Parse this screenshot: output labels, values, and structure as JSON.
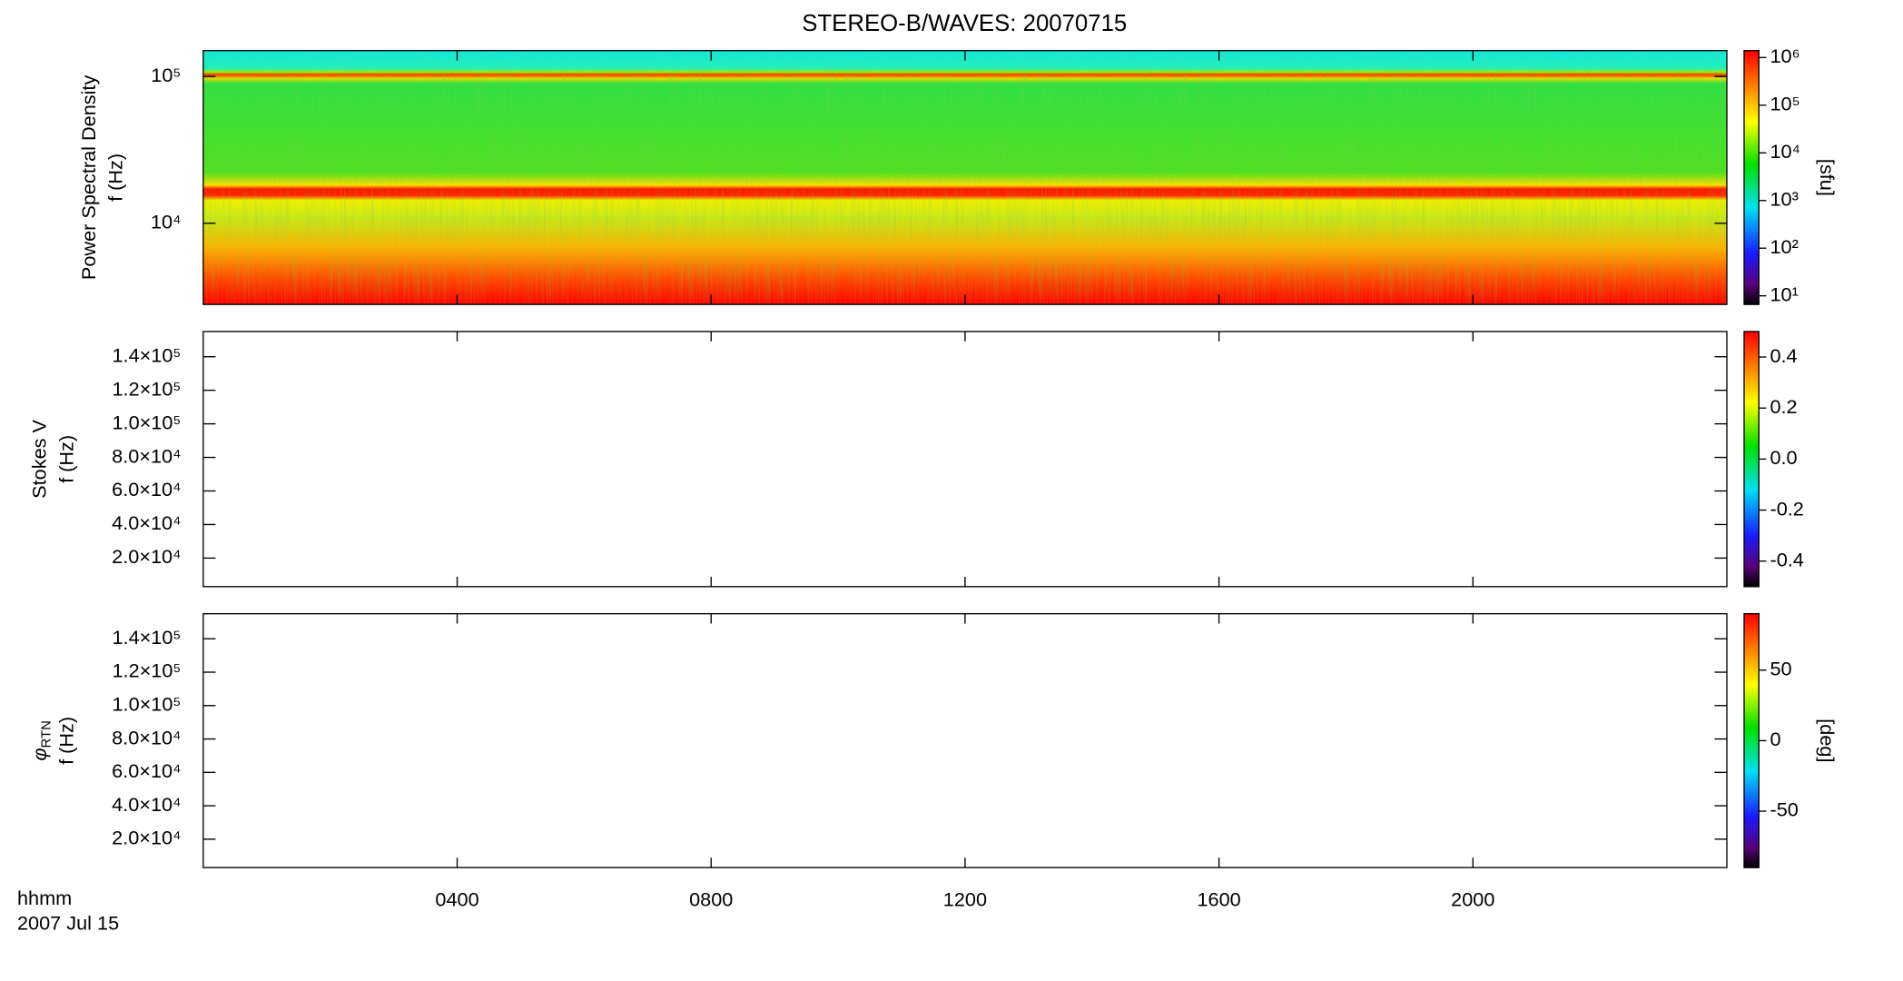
{
  "chart_data": [
    {
      "type": "heatmap",
      "title": "STEREO-B/WAVES: 20070715",
      "ylabel": "Power Spectral Density",
      "ylabel2": "f (Hz)",
      "xlim": [
        0,
        24
      ],
      "xticks": [
        {
          "value": 4,
          "label": "0400"
        },
        {
          "value": 8,
          "label": "0800"
        },
        {
          "value": 12,
          "label": "1200"
        },
        {
          "value": 16,
          "label": "1600"
        },
        {
          "value": 20,
          "label": "2000"
        }
      ],
      "ylim": [
        2800,
        150000
      ],
      "ylog": true,
      "yticks": [
        {
          "value": 10000,
          "label": "10⁴"
        },
        {
          "value": 100000,
          "label": "10⁵"
        }
      ],
      "colorbar": {
        "lim": [
          6.6,
          1400000
        ],
        "log": true,
        "label": "[sfu]",
        "ticks": [
          {
            "value": 10,
            "label": "10¹"
          },
          {
            "value": 100,
            "label": "10²"
          },
          {
            "value": 1000,
            "label": "10³"
          },
          {
            "value": 10000,
            "label": "10⁴"
          },
          {
            "value": 100000,
            "label": "10⁵"
          },
          {
            "value": 1000000,
            "label": "10⁶"
          }
        ]
      }
    },
    {
      "type": "heatmap",
      "ylabel": "Stokes V",
      "ylabel2": "f (Hz)",
      "xlim": [
        0,
        24
      ],
      "xticks": [
        {
          "value": 4,
          "label": "0400"
        },
        {
          "value": 8,
          "label": "0800"
        },
        {
          "value": 12,
          "label": "1200"
        },
        {
          "value": 16,
          "label": "1600"
        },
        {
          "value": 20,
          "label": "2000"
        }
      ],
      "ylim": [
        3000,
        155000
      ],
      "yticks": [
        {
          "value": 20000,
          "label": "2.0×10⁴"
        },
        {
          "value": 40000,
          "label": "4.0×10⁴"
        },
        {
          "value": 60000,
          "label": "6.0×10⁴"
        },
        {
          "value": 80000,
          "label": "8.0×10⁴"
        },
        {
          "value": 100000,
          "label": "1.0×10⁵"
        },
        {
          "value": 120000,
          "label": "1.2×10⁵"
        },
        {
          "value": 140000,
          "label": "1.4×10⁵"
        }
      ],
      "colorbar": {
        "lim": [
          -0.5,
          0.5
        ],
        "ticks": [
          -0.4,
          -0.2,
          {
            "value": 0,
            "label": "0.0"
          },
          0.2,
          0.4
        ]
      }
    },
    {
      "type": "heatmap",
      "ylabel_symbol": "φ",
      "ylabel_subscript": "RTN",
      "ylabel2": "f (Hz)",
      "xlabel": "hhmm",
      "date": "2007 Jul 15",
      "xlim": [
        0,
        24
      ],
      "xticks": [
        {
          "value": 4,
          "label": "0400"
        },
        {
          "value": 8,
          "label": "0800"
        },
        {
          "value": 12,
          "label": "1200"
        },
        {
          "value": 16,
          "label": "1600"
        },
        {
          "value": 20,
          "label": "2000"
        }
      ],
      "ylim": [
        3000,
        155000
      ],
      "yticks": [
        {
          "value": 20000,
          "label": "2.0×10⁴"
        },
        {
          "value": 40000,
          "label": "4.0×10⁴"
        },
        {
          "value": 60000,
          "label": "6.0×10⁴"
        },
        {
          "value": 80000,
          "label": "8.0×10⁴"
        },
        {
          "value": 100000,
          "label": "1.0×10⁵"
        },
        {
          "value": 120000,
          "label": "1.2×10⁵"
        },
        {
          "value": 140000,
          "label": "1.4×10⁵"
        }
      ],
      "colorbar": {
        "lim": [
          -90,
          90
        ],
        "label": "[deg]",
        "ticks": [
          -50,
          0,
          50
        ]
      }
    }
  ]
}
